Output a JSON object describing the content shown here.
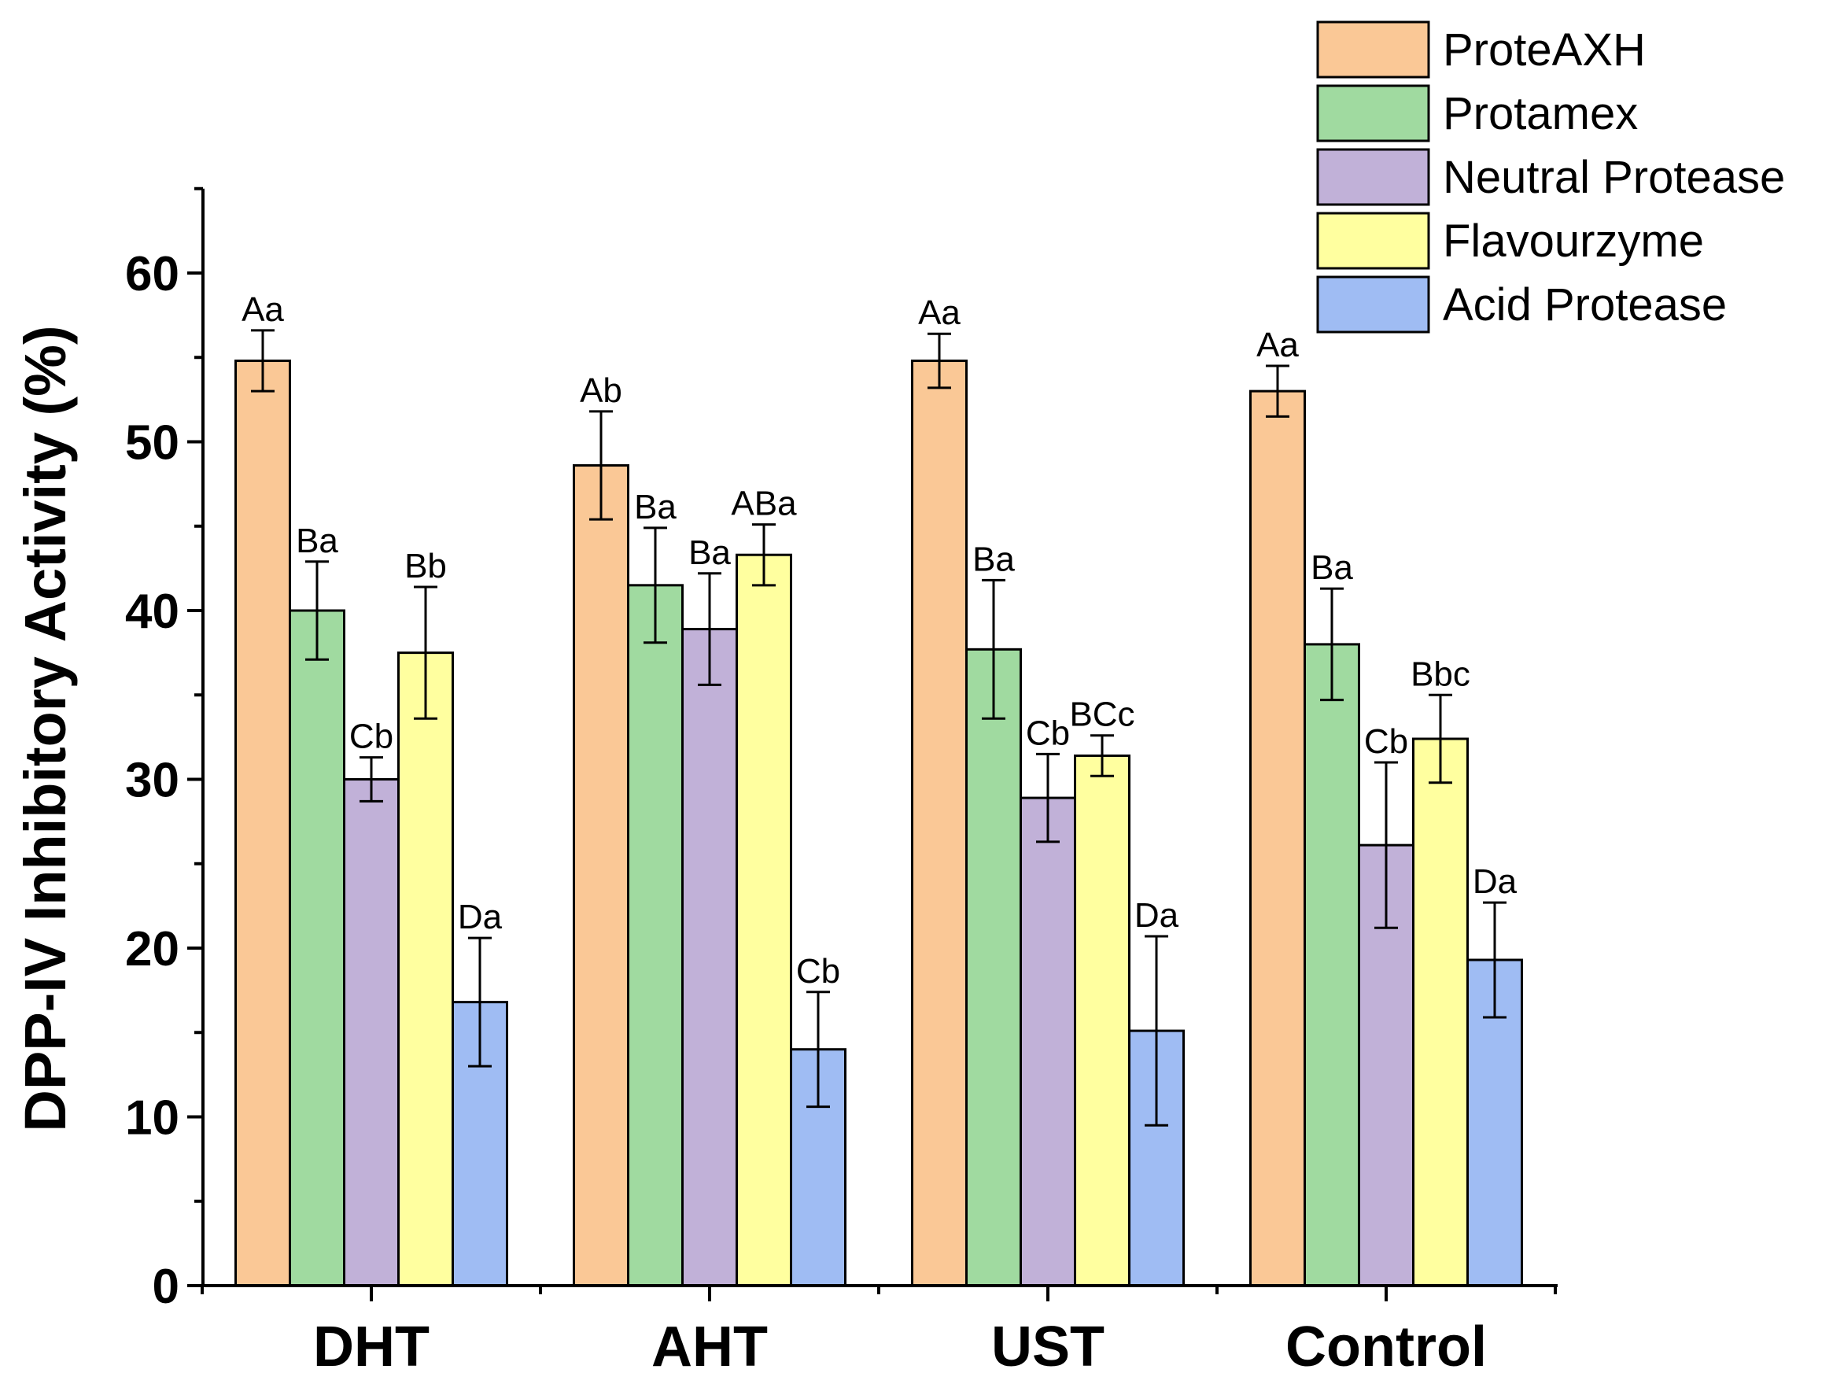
{
  "chart_data": {
    "type": "bar",
    "title": "",
    "xlabel": "",
    "ylabel": "DPP-IV Inhibitory Activity (%)",
    "ylim": [
      0,
      65
    ],
    "yticks": [
      0,
      10,
      20,
      30,
      40,
      50,
      60
    ],
    "legend_position": "top-right",
    "categories": [
      "DHT",
      "AHT",
      "UST",
      "Control"
    ],
    "series": [
      {
        "name": "ProteAXH",
        "color": "#fac896",
        "values": [
          54.8,
          48.6,
          54.8,
          53.0
        ],
        "errors": [
          1.8,
          3.2,
          1.6,
          1.5
        ],
        "letters": [
          "Aa",
          "Ab",
          "Aa",
          "Aa"
        ]
      },
      {
        "name": "Protamex",
        "color": "#a0daa0",
        "values": [
          40.0,
          41.5,
          37.7,
          38.0
        ],
        "errors": [
          2.9,
          3.4,
          4.1,
          3.3
        ],
        "letters": [
          "Ba",
          "Ba",
          "Ba",
          "Ba"
        ]
      },
      {
        "name": "Neutral Protease",
        "color": "#c1b1d8",
        "values": [
          30.0,
          38.9,
          28.9,
          26.1
        ],
        "errors": [
          1.3,
          3.3,
          2.6,
          4.9
        ],
        "letters": [
          "Cb",
          "Ba",
          "Cb",
          "Cb"
        ]
      },
      {
        "name": "Flavourzyme",
        "color": "#ffff9f",
        "values": [
          37.5,
          43.3,
          31.4,
          32.4
        ],
        "errors": [
          3.9,
          1.8,
          1.2,
          2.6
        ],
        "letters": [
          "Bb",
          "ABa",
          "BCc",
          "Bbc"
        ]
      },
      {
        "name": "Acid Protease",
        "color": "#9fbcf3",
        "values": [
          16.8,
          14.0,
          15.1,
          19.3
        ],
        "errors": [
          3.8,
          3.4,
          5.6,
          3.4
        ],
        "letters": [
          "Da",
          "Cb",
          "Da",
          "Da"
        ]
      }
    ]
  }
}
